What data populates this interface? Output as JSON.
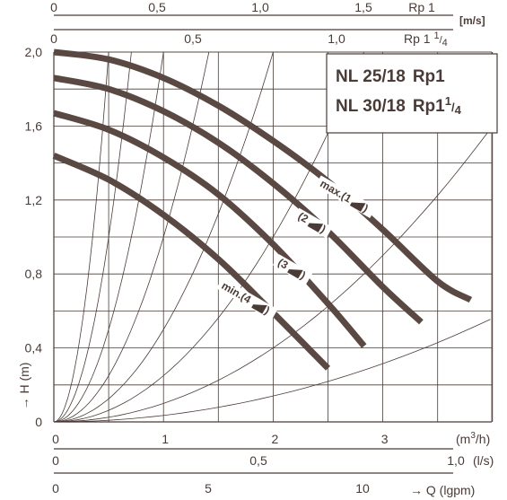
{
  "legend": {
    "line1_model": "NL 25/18",
    "line1_conn": "Rp1",
    "line2_model": "NL 30/18",
    "line2_conn": "Rp1",
    "line2_frac_num": "1",
    "line2_frac_den": "4"
  },
  "top_axes": {
    "unit_label": "[m/s]",
    "rp1_label": "Rp 1",
    "rp1_ticks": [
      "0",
      "0,5",
      "1,0",
      "1,5"
    ],
    "rp114_label": "Rp 1",
    "rp114_frac_num": "1",
    "rp114_frac_den": "4",
    "rp114_ticks": [
      "0",
      "0,5",
      "1,0"
    ]
  },
  "bottom_axes": {
    "m3h_label": "(m",
    "m3h_sup": "3",
    "m3h_suffix": "/h)",
    "ls_label": "(l/s)",
    "gpm_label": "→ Q (lgpm)"
  },
  "y_axis": {
    "label": "→ H (m)"
  },
  "chart_data": {
    "type": "line",
    "title": "NL 25/18 Rp1 / NL 30/18 Rp1¼",
    "xlabel": "Q (m³/h)",
    "ylabel": "H (m)",
    "xlim": [
      0,
      4
    ],
    "ylim": [
      0,
      2.0
    ],
    "x_ticks": [
      "0",
      "1",
      "2",
      "3"
    ],
    "y_ticks": [
      "0",
      "0,4",
      "0,8",
      "1,2",
      "1,6",
      "2,0"
    ],
    "secondary_x_ls": {
      "ticks": [
        "0",
        "0,5",
        "1,0"
      ],
      "range": [
        0,
        1.11
      ]
    },
    "secondary_x_gpm": {
      "ticks": [
        "0",
        "5",
        "10"
      ],
      "range": [
        0,
        14.67
      ]
    },
    "series": [
      {
        "name": "max.(1)",
        "x": [
          0,
          0.5,
          1.0,
          1.5,
          2.0,
          2.5,
          3.0,
          3.5,
          3.8
        ],
        "y": [
          2.0,
          1.96,
          1.86,
          1.71,
          1.52,
          1.3,
          1.04,
          0.76,
          0.66
        ]
      },
      {
        "name": "(2)",
        "x": [
          0,
          0.5,
          1.0,
          1.5,
          2.0,
          2.5,
          3.0,
          3.35
        ],
        "y": [
          1.86,
          1.8,
          1.68,
          1.51,
          1.29,
          1.03,
          0.73,
          0.54
        ]
      },
      {
        "name": "(3)",
        "x": [
          0,
          0.5,
          1.0,
          1.5,
          2.0,
          2.5,
          2.83
        ],
        "y": [
          1.67,
          1.58,
          1.43,
          1.23,
          0.96,
          0.64,
          0.41
        ]
      },
      {
        "name": "min.(4)",
        "x": [
          0,
          0.5,
          1.0,
          1.5,
          2.0,
          2.5
        ],
        "y": [
          1.44,
          1.31,
          1.12,
          0.88,
          0.59,
          0.29
        ]
      }
    ],
    "grid": true
  }
}
